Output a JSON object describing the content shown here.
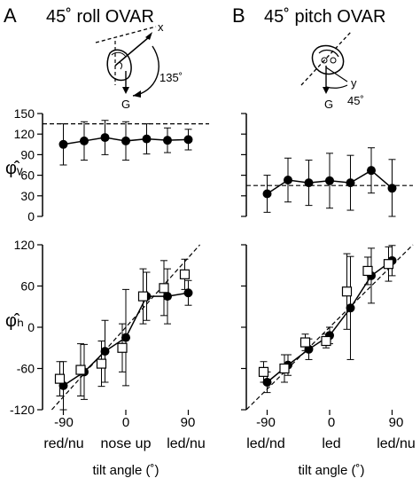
{
  "colors": {
    "ink": "#000000",
    "open_marker_fill": "#ffffff"
  },
  "panels": {
    "A": {
      "letter": "A",
      "title": "45˚ roll OVAR",
      "diagram": {
        "axis_label": "x",
        "angle_label": "135˚",
        "gravity_label": "G",
        "head_view": "head-side-view",
        "arrow": "rotation-arrow"
      },
      "xticks": [
        "-90",
        "0",
        "90"
      ],
      "xcond": [
        "red/nu",
        "nose up",
        "led/nu"
      ],
      "xlabel": "tilt angle (˚)"
    },
    "B": {
      "letter": "B",
      "title": "45˚ pitch OVAR",
      "diagram": {
        "axis_label": "y",
        "angle_label": "45˚",
        "gravity_label": "G",
        "head_view": "head-front-view",
        "arrow": "rotation-arrow"
      },
      "xticks": [
        "-90",
        "0",
        "90"
      ],
      "xcond": [
        "led/nd",
        "led",
        "led/nu"
      ],
      "xlabel": "tilt angle (˚)"
    }
  },
  "chart_data": [
    {
      "type": "line",
      "panel": "A",
      "row": "top",
      "ylabel": "φ̂ᵥ",
      "ylim": [
        0,
        150
      ],
      "yticks": [
        0,
        30,
        60,
        90,
        120,
        150
      ],
      "xlim": [
        -120,
        120
      ],
      "xticks": [
        -90,
        0,
        90
      ],
      "reference_line": {
        "style": "dashed",
        "y": 135
      },
      "series": [
        {
          "marker": "filled-circle",
          "points": [
            {
              "x": -90,
              "y": 105,
              "err": 30
            },
            {
              "x": -60,
              "y": 110,
              "err": 28
            },
            {
              "x": -30,
              "y": 115,
              "err": 25
            },
            {
              "x": 0,
              "y": 110,
              "err": 28
            },
            {
              "x": 30,
              "y": 113,
              "err": 22
            },
            {
              "x": 60,
              "y": 111,
              "err": 18
            },
            {
              "x": 90,
              "y": 112,
              "err": 15
            }
          ]
        }
      ]
    },
    {
      "type": "line",
      "panel": "B",
      "row": "top",
      "ylim": [
        0,
        150
      ],
      "yticks": [
        0,
        30,
        60,
        90,
        120,
        150
      ],
      "xlim": [
        -120,
        120
      ],
      "xticks": [
        -90,
        0,
        90
      ],
      "reference_line": {
        "style": "dashed",
        "y": 45
      },
      "series": [
        {
          "marker": "filled-circle",
          "points": [
            {
              "x": -90,
              "y": 33,
              "err": 27
            },
            {
              "x": -60,
              "y": 53,
              "err": 32
            },
            {
              "x": -30,
              "y": 49,
              "err": 33
            },
            {
              "x": 0,
              "y": 52,
              "err": 40
            },
            {
              "x": 30,
              "y": 49,
              "err": 40
            },
            {
              "x": 60,
              "y": 67,
              "err": 33
            },
            {
              "x": 90,
              "y": 41,
              "err": 42
            }
          ]
        }
      ]
    },
    {
      "type": "line",
      "panel": "A",
      "row": "bottom",
      "ylabel": "φ̂ₕ",
      "ylim": [
        -120,
        120
      ],
      "yticks": [
        -120,
        -60,
        0,
        60,
        120
      ],
      "xlim": [
        -120,
        120
      ],
      "xticks": [
        -90,
        0,
        90
      ],
      "reference_line": {
        "style": "dashed",
        "from": [
          -120,
          -135
        ],
        "to": [
          120,
          135
        ]
      },
      "series": [
        {
          "marker": "filled-circle",
          "connected": true,
          "points": [
            {
              "x": -90,
              "y": -85,
              "err": 35
            },
            {
              "x": -60,
              "y": -65,
              "err": 40
            },
            {
              "x": -30,
              "y": -35,
              "err": 45
            },
            {
              "x": 0,
              "y": -15,
              "err": 70
            },
            {
              "x": 30,
              "y": 45,
              "err": 35
            },
            {
              "x": 60,
              "y": 45,
              "err": 40
            },
            {
              "x": 90,
              "y": 50,
              "err": 18
            }
          ]
        },
        {
          "marker": "open-square",
          "connected": false,
          "points": [
            {
              "x": -90,
              "y": -75,
              "err": 25
            },
            {
              "x": -60,
              "y": -62,
              "err": 38
            },
            {
              "x": -30,
              "y": -53,
              "err": 33
            },
            {
              "x": 0,
              "y": -30,
              "err": 35
            },
            {
              "x": 30,
              "y": 45,
              "err": 40
            },
            {
              "x": 60,
              "y": 57,
              "err": 40
            },
            {
              "x": 90,
              "y": 77,
              "err": 22
            }
          ]
        }
      ]
    },
    {
      "type": "line",
      "panel": "B",
      "row": "bottom",
      "ylim": [
        -120,
        120
      ],
      "yticks": [
        -120,
        -60,
        0,
        60,
        120
      ],
      "xlim": [
        -120,
        120
      ],
      "xticks": [
        -90,
        0,
        90
      ],
      "reference_line": {
        "style": "dashed",
        "from": [
          -120,
          -120
        ],
        "to": [
          120,
          120
        ]
      },
      "series": [
        {
          "marker": "filled-circle",
          "connected": true,
          "points": [
            {
              "x": -90,
              "y": -80,
              "err": 15
            },
            {
              "x": -60,
              "y": -55,
              "err": 15
            },
            {
              "x": -30,
              "y": -32,
              "err": 15
            },
            {
              "x": 0,
              "y": -12,
              "err": 12
            },
            {
              "x": 30,
              "y": 28,
              "err": 75
            },
            {
              "x": 60,
              "y": 75,
              "err": 40
            },
            {
              "x": 90,
              "y": 97,
              "err": 22
            }
          ]
        },
        {
          "marker": "open-square",
          "connected": false,
          "points": [
            {
              "x": -90,
              "y": -65,
              "err": 15
            },
            {
              "x": -60,
              "y": -60,
              "err": 20
            },
            {
              "x": -30,
              "y": -22,
              "err": 12
            },
            {
              "x": 0,
              "y": -20,
              "err": 10
            },
            {
              "x": 30,
              "y": 52,
              "err": 55
            },
            {
              "x": 60,
              "y": 82,
              "err": 20
            },
            {
              "x": 90,
              "y": 92,
              "err": 25
            }
          ]
        }
      ]
    }
  ]
}
